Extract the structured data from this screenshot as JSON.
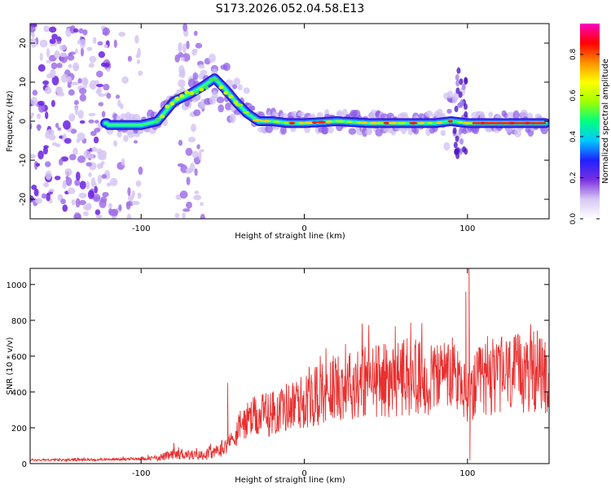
{
  "title": "S173.2026.052.04.58.E13",
  "chart_data": [
    {
      "type": "heatmap",
      "name": "spectrogram",
      "xlabel": "Height of straight line (km)",
      "ylabel": "Frequency (Hz)",
      "xlim": [
        -168,
        150
      ],
      "ylim": [
        -25,
        25
      ],
      "xticks": [
        -100,
        0,
        100
      ],
      "xtick_labels": [
        "-100",
        "0",
        "100"
      ],
      "yticks": [
        -20,
        -10,
        0,
        10,
        20
      ],
      "ytick_labels": [
        "-20",
        "-10",
        "0",
        "10",
        "20"
      ],
      "ridge": {
        "x": [
          -120,
          -100,
          -90,
          -80,
          -70,
          -62,
          -55,
          -48,
          -42,
          -35,
          -28,
          -20,
          -10,
          0,
          20,
          40,
          60,
          80,
          90,
          100,
          120,
          148
        ],
        "y": [
          -1,
          -1,
          0,
          5,
          7,
          9,
          11,
          8,
          5,
          2,
          0,
          0,
          -0.5,
          -0.5,
          0,
          -0.5,
          -0.5,
          -0.5,
          0,
          -0.5,
          -0.5,
          -0.5
        ]
      },
      "colorbar": {
        "label": "Normalized spectral amplitude",
        "range": [
          0,
          0.95
        ],
        "ticks": [
          0.0,
          0.2,
          0.4,
          0.6,
          0.8
        ],
        "tick_labels": [
          "0.0",
          "0.2",
          "0.4",
          "0.6",
          "0.8"
        ],
        "colors": [
          "#ffffff",
          "#d8c8f4",
          "#7a30e0",
          "#2020ff",
          "#00c8ff",
          "#00ff80",
          "#a0ff00",
          "#ffff00",
          "#ff9000",
          "#ff0000",
          "#ff00c0"
        ]
      }
    },
    {
      "type": "line",
      "name": "snr",
      "xlabel": "Height of straight line (km)",
      "ylabel": "SNR (10 * v/v)",
      "xlim": [
        -168,
        150
      ],
      "ylim": [
        0,
        1090
      ],
      "xticks": [
        -100,
        0,
        100
      ],
      "xtick_labels": [
        "-100",
        "0",
        "100"
      ],
      "yticks": [
        0,
        200,
        400,
        600,
        800,
        1000
      ],
      "ytick_labels": [
        "0",
        "200",
        "400",
        "600",
        "800",
        "1000"
      ],
      "color": "#e83030",
      "series": [
        {
          "name": "SNR envelope",
          "x": [
            -168,
            -150,
            -130,
            -110,
            -95,
            -85,
            -75,
            -65,
            -55,
            -45,
            -40,
            -35,
            -30,
            -25,
            -20,
            -15,
            -10,
            -5,
            0,
            5,
            10,
            15,
            20,
            25,
            30,
            40,
            50,
            60,
            70,
            80,
            90,
            95,
            100,
            105,
            110,
            120,
            130,
            140,
            150
          ],
          "y": [
            20,
            20,
            22,
            25,
            30,
            40,
            55,
            45,
            60,
            120,
            200,
            240,
            260,
            270,
            280,
            300,
            320,
            330,
            350,
            360,
            390,
            410,
            430,
            440,
            450,
            460,
            470,
            480,
            470,
            480,
            490,
            470,
            360,
            430,
            480,
            490,
            500,
            500,
            490
          ]
        }
      ],
      "spikes": [
        {
          "x": 101,
          "y": 1090
        },
        {
          "x": 99,
          "y": 960
        },
        {
          "x": 101.5,
          "y": 20
        },
        {
          "x": 63,
          "y": 700
        },
        {
          "x": 60,
          "y": 660
        },
        {
          "x": -47,
          "y": 450
        },
        {
          "x": -80,
          "y": 115
        }
      ]
    }
  ]
}
